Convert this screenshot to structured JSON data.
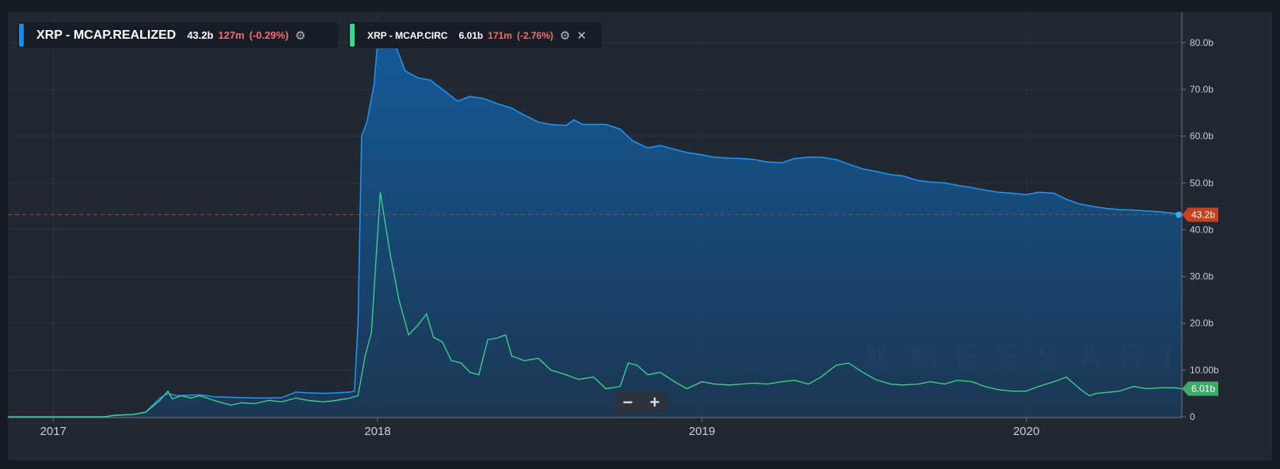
{
  "legend": [
    {
      "name": "XRP - MCAP.REALIZED",
      "value": "43.2b",
      "change": "127m",
      "change_pct": "(-0.29%)",
      "color": "#1e88e5",
      "icons": [
        "gear-icon"
      ]
    },
    {
      "name": "XRP - MCAP.CIRC",
      "value": "6.01b",
      "change": "171m",
      "change_pct": "(-2.76%)",
      "color": "#2ecc71",
      "icons": [
        "gear-icon",
        "close-icon"
      ]
    }
  ],
  "watermark": "MESSARI",
  "zoom": {
    "minus": "−",
    "plus": "+"
  },
  "chart_data": {
    "type": "area",
    "x_ticks": [
      "2017",
      "2018",
      "2019",
      "2020"
    ],
    "y_ticks": [
      "0",
      "10.00b",
      "20.0b",
      "30.0b",
      "40.0b",
      "50.0b",
      "60.0b",
      "70.0b",
      "80.0b"
    ],
    "ylim": [
      0,
      87
    ],
    "xlim": [
      "2016-11-11",
      "2020-06-24"
    ],
    "grid": true,
    "last_value_labels": [
      {
        "series": "XRP - MCAP.REALIZED",
        "text": "43.2b",
        "value": 43.2,
        "color": "#c8411f"
      },
      {
        "series": "XRP - MCAP.CIRC",
        "text": "6.01b",
        "value": 6.01,
        "color": "#3daa6a"
      }
    ],
    "series": [
      {
        "name": "XRP - MCAP.REALIZED",
        "color": "#2196f3",
        "points": [
          [
            "2016-11-11",
            0
          ],
          [
            "2017-01-01",
            0
          ],
          [
            "2017-02-01",
            0
          ],
          [
            "2017-03-01",
            0
          ],
          [
            "2017-03-10",
            0.3
          ],
          [
            "2017-04-01",
            0.5
          ],
          [
            "2017-04-15",
            1
          ],
          [
            "2017-05-01",
            4
          ],
          [
            "2017-05-10",
            5
          ],
          [
            "2017-05-20",
            4.5
          ],
          [
            "2017-06-01",
            4.6
          ],
          [
            "2017-06-15",
            4.7
          ],
          [
            "2017-07-01",
            4.3
          ],
          [
            "2017-07-15",
            4.2
          ],
          [
            "2017-08-01",
            4.1
          ],
          [
            "2017-08-15",
            4
          ],
          [
            "2017-09-01",
            4
          ],
          [
            "2017-09-15",
            4.1
          ],
          [
            "2017-10-01",
            5.3
          ],
          [
            "2017-10-15",
            5.1
          ],
          [
            "2017-11-01",
            5
          ],
          [
            "2017-11-15",
            5.1
          ],
          [
            "2017-12-01",
            5.3
          ],
          [
            "2017-12-06",
            5.5
          ],
          [
            "2017-12-10",
            20
          ],
          [
            "2017-12-14",
            60
          ],
          [
            "2017-12-20",
            63
          ],
          [
            "2017-12-28",
            71
          ],
          [
            "2018-01-01",
            80
          ],
          [
            "2018-01-04",
            84
          ],
          [
            "2018-01-20",
            80
          ],
          [
            "2018-02-01",
            74
          ],
          [
            "2018-02-15",
            72.5
          ],
          [
            "2018-03-01",
            72
          ],
          [
            "2018-03-15",
            70
          ],
          [
            "2018-04-01",
            67.5
          ],
          [
            "2018-04-15",
            68.5
          ],
          [
            "2018-05-01",
            68
          ],
          [
            "2018-05-15",
            67
          ],
          [
            "2018-06-01",
            66
          ],
          [
            "2018-06-15",
            64.5
          ],
          [
            "2018-07-01",
            63
          ],
          [
            "2018-07-15",
            62.5
          ],
          [
            "2018-08-01",
            62.3
          ],
          [
            "2018-08-10",
            63.5
          ],
          [
            "2018-08-20",
            62.5
          ],
          [
            "2018-09-01",
            62.5
          ],
          [
            "2018-09-15",
            62.5
          ],
          [
            "2018-10-01",
            61.5
          ],
          [
            "2018-10-15",
            59
          ],
          [
            "2018-11-01",
            57.5
          ],
          [
            "2018-11-15",
            58
          ],
          [
            "2018-12-01",
            57.2
          ],
          [
            "2018-12-15",
            56.5
          ],
          [
            "2019-01-01",
            56
          ],
          [
            "2019-01-15",
            55.5
          ],
          [
            "2019-02-01",
            55.3
          ],
          [
            "2019-02-15",
            55.2
          ],
          [
            "2019-03-01",
            55
          ],
          [
            "2019-03-15",
            54.5
          ],
          [
            "2019-04-01",
            54.3
          ],
          [
            "2019-04-15",
            55.2
          ],
          [
            "2019-05-01",
            55.5
          ],
          [
            "2019-05-15",
            55.5
          ],
          [
            "2019-06-01",
            55
          ],
          [
            "2019-06-15",
            54
          ],
          [
            "2019-07-01",
            53
          ],
          [
            "2019-07-15",
            52.5
          ],
          [
            "2019-08-01",
            51.8
          ],
          [
            "2019-08-15",
            51.5
          ],
          [
            "2019-09-01",
            50.5
          ],
          [
            "2019-09-15",
            50.2
          ],
          [
            "2019-10-01",
            50
          ],
          [
            "2019-10-15",
            49.5
          ],
          [
            "2019-11-01",
            49
          ],
          [
            "2019-11-15",
            48.5
          ],
          [
            "2019-12-01",
            48
          ],
          [
            "2019-12-15",
            47.8
          ],
          [
            "2020-01-01",
            47.5
          ],
          [
            "2020-01-15",
            48
          ],
          [
            "2020-02-01",
            47.8
          ],
          [
            "2020-02-15",
            46.5
          ],
          [
            "2020-03-01",
            45.5
          ],
          [
            "2020-03-15",
            45
          ],
          [
            "2020-04-01",
            44.5
          ],
          [
            "2020-04-15",
            44.3
          ],
          [
            "2020-05-01",
            44.2
          ],
          [
            "2020-05-15",
            44
          ],
          [
            "2020-06-01",
            43.8
          ],
          [
            "2020-06-15",
            43.5
          ],
          [
            "2020-06-24",
            43.2
          ]
        ]
      },
      {
        "name": "XRP - MCAP.CIRC",
        "color": "#3dd68c",
        "points": [
          [
            "2016-11-11",
            0
          ],
          [
            "2017-01-01",
            0
          ],
          [
            "2017-02-01",
            0
          ],
          [
            "2017-03-01",
            0
          ],
          [
            "2017-03-10",
            0.3
          ],
          [
            "2017-04-01",
            0.5
          ],
          [
            "2017-04-15",
            1
          ],
          [
            "2017-05-01",
            3.5
          ],
          [
            "2017-05-10",
            5.5
          ],
          [
            "2017-05-15",
            3.8
          ],
          [
            "2017-05-25",
            4.5
          ],
          [
            "2017-06-05",
            4
          ],
          [
            "2017-06-15",
            4.5
          ],
          [
            "2017-07-01",
            3.5
          ],
          [
            "2017-07-10",
            3
          ],
          [
            "2017-07-20",
            2.5
          ],
          [
            "2017-08-01",
            3
          ],
          [
            "2017-08-15",
            2.8
          ],
          [
            "2017-09-01",
            3.5
          ],
          [
            "2017-09-15",
            3.2
          ],
          [
            "2017-10-01",
            4
          ],
          [
            "2017-10-15",
            3.5
          ],
          [
            "2017-11-01",
            3.2
          ],
          [
            "2017-11-15",
            3.5
          ],
          [
            "2017-12-01",
            4
          ],
          [
            "2017-12-10",
            4.5
          ],
          [
            "2017-12-18",
            13
          ],
          [
            "2017-12-25",
            18
          ],
          [
            "2018-01-04",
            48
          ],
          [
            "2018-01-15",
            35
          ],
          [
            "2018-01-25",
            25
          ],
          [
            "2018-02-05",
            17.5
          ],
          [
            "2018-02-15",
            19.5
          ],
          [
            "2018-02-25",
            22
          ],
          [
            "2018-03-05",
            17
          ],
          [
            "2018-03-15",
            16
          ],
          [
            "2018-03-25",
            12
          ],
          [
            "2018-04-05",
            11.5
          ],
          [
            "2018-04-15",
            9.5
          ],
          [
            "2018-04-25",
            9
          ],
          [
            "2018-05-05",
            16.5
          ],
          [
            "2018-05-15",
            16.8
          ],
          [
            "2018-05-25",
            17.5
          ],
          [
            "2018-06-01",
            13
          ],
          [
            "2018-06-15",
            12
          ],
          [
            "2018-07-01",
            12.5
          ],
          [
            "2018-07-15",
            10
          ],
          [
            "2018-08-01",
            9
          ],
          [
            "2018-08-15",
            8
          ],
          [
            "2018-09-01",
            8.5
          ],
          [
            "2018-09-15",
            6
          ],
          [
            "2018-10-01",
            6.5
          ],
          [
            "2018-10-10",
            11.5
          ],
          [
            "2018-10-20",
            11
          ],
          [
            "2018-11-01",
            9
          ],
          [
            "2018-11-15",
            9.5
          ],
          [
            "2018-12-01",
            7.5
          ],
          [
            "2018-12-15",
            6
          ],
          [
            "2019-01-01",
            7.5
          ],
          [
            "2019-01-15",
            7
          ],
          [
            "2019-02-01",
            6.8
          ],
          [
            "2019-02-15",
            7
          ],
          [
            "2019-03-01",
            7.2
          ],
          [
            "2019-03-15",
            7
          ],
          [
            "2019-04-01",
            7.5
          ],
          [
            "2019-04-15",
            7.8
          ],
          [
            "2019-05-01",
            7
          ],
          [
            "2019-05-15",
            8.5
          ],
          [
            "2019-06-01",
            11
          ],
          [
            "2019-06-15",
            11.5
          ],
          [
            "2019-07-01",
            9.5
          ],
          [
            "2019-07-15",
            8
          ],
          [
            "2019-08-01",
            7
          ],
          [
            "2019-08-15",
            6.8
          ],
          [
            "2019-09-01",
            7
          ],
          [
            "2019-09-15",
            7.5
          ],
          [
            "2019-10-01",
            7
          ],
          [
            "2019-10-15",
            7.8
          ],
          [
            "2019-11-01",
            7.5
          ],
          [
            "2019-11-15",
            6.5
          ],
          [
            "2019-12-01",
            5.8
          ],
          [
            "2019-12-15",
            5.5
          ],
          [
            "2020-01-01",
            5.5
          ],
          [
            "2020-01-15",
            6.5
          ],
          [
            "2020-02-01",
            7.5
          ],
          [
            "2020-02-15",
            8.5
          ],
          [
            "2020-03-01",
            6
          ],
          [
            "2020-03-12",
            4.5
          ],
          [
            "2020-03-20",
            5
          ],
          [
            "2020-04-01",
            5.2
          ],
          [
            "2020-04-15",
            5.5
          ],
          [
            "2020-05-01",
            6.5
          ],
          [
            "2020-05-15",
            6
          ],
          [
            "2020-06-01",
            6.2
          ],
          [
            "2020-06-15",
            6.2
          ],
          [
            "2020-06-24",
            6.01
          ]
        ]
      }
    ]
  }
}
